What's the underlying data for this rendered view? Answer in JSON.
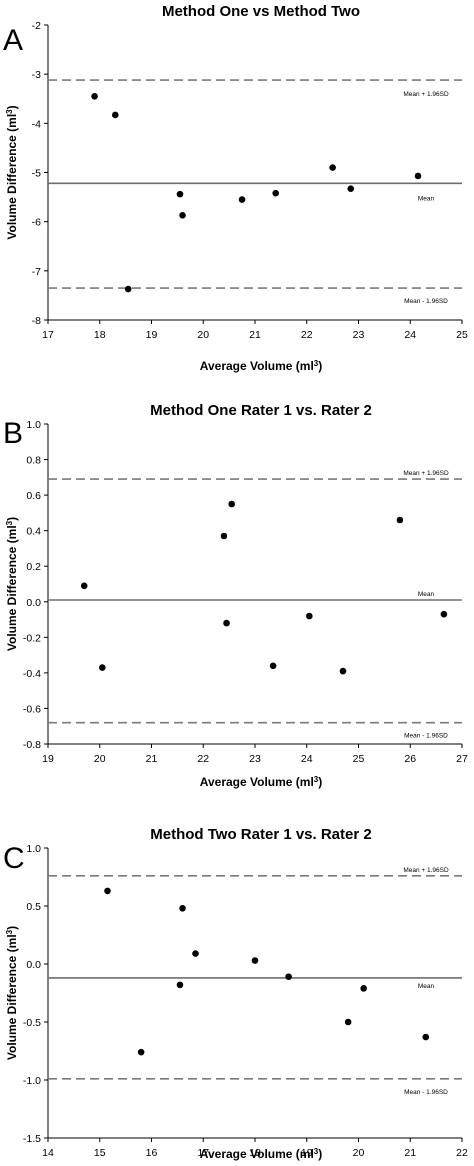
{
  "chart_data": [
    {
      "type": "scatter",
      "panel_letter": "A",
      "title": "Method One vs Method Two",
      "xlabel": "Average Volume (ml",
      "xlabel_sup": "3",
      "xlabel_suffix": ")",
      "ylabel": "Volume Difference (ml",
      "ylabel_sup": "3",
      "ylabel_suffix": ")",
      "xlim": [
        17,
        25
      ],
      "ylim": [
        -8,
        -2
      ],
      "xticks": [
        17,
        18,
        19,
        20,
        21,
        22,
        23,
        24,
        25
      ],
      "yticks": [
        -8,
        -7,
        -6,
        -5,
        -4,
        -3,
        -2
      ],
      "ytick_decimals": 0,
      "points": [
        {
          "x": 17.9,
          "y": -3.45
        },
        {
          "x": 18.3,
          "y": -3.83
        },
        {
          "x": 18.55,
          "y": -7.37
        },
        {
          "x": 19.55,
          "y": -5.44
        },
        {
          "x": 19.6,
          "y": -5.87
        },
        {
          "x": 20.75,
          "y": -5.55
        },
        {
          "x": 21.4,
          "y": -5.42
        },
        {
          "x": 22.5,
          "y": -4.9
        },
        {
          "x": 22.85,
          "y": -5.33
        },
        {
          "x": 24.15,
          "y": -5.07
        }
      ],
      "mean": -5.22,
      "upper": -3.12,
      "lower": -7.35,
      "mean_label": "Mean",
      "upper_label": "Mean + 1.96SD",
      "lower_label": "Mean - 1.96SD",
      "grid": false
    },
    {
      "type": "scatter",
      "panel_letter": "B",
      "title": "Method One Rater 1 vs. Rater 2",
      "xlabel": "Average Volume (ml",
      "xlabel_sup": "3",
      "xlabel_suffix": ")",
      "ylabel": "Volume Difference (ml",
      "ylabel_sup": "3",
      "ylabel_suffix": ")",
      "xlim": [
        19,
        27
      ],
      "ylim": [
        -0.8,
        1.0
      ],
      "xticks": [
        19,
        20,
        21,
        22,
        23,
        24,
        25,
        26,
        27
      ],
      "yticks": [
        -0.8,
        -0.6,
        -0.4,
        -0.2,
        0.0,
        0.2,
        0.4,
        0.6,
        0.8,
        1.0
      ],
      "ytick_decimals": 1,
      "points": [
        {
          "x": 19.7,
          "y": 0.09
        },
        {
          "x": 20.05,
          "y": -0.37
        },
        {
          "x": 22.4,
          "y": 0.37
        },
        {
          "x": 22.45,
          "y": -0.12
        },
        {
          "x": 22.55,
          "y": 0.55
        },
        {
          "x": 23.35,
          "y": -0.36
        },
        {
          "x": 24.05,
          "y": -0.08
        },
        {
          "x": 24.7,
          "y": -0.39
        },
        {
          "x": 25.8,
          "y": 0.46
        },
        {
          "x": 26.65,
          "y": -0.07
        }
      ],
      "mean": 0.01,
      "upper": 0.69,
      "lower": -0.68,
      "mean_label": "Mean",
      "upper_label": "Mean + 1.96SD",
      "lower_label": "Mean - 1.96SD",
      "grid": false
    },
    {
      "type": "scatter",
      "panel_letter": "C",
      "title": "Method Two Rater 1 vs. Rater 2",
      "xlabel": "Average Volume (ml",
      "xlabel_sup": "3",
      "xlabel_suffix": ")",
      "ylabel": "Volume Difference (ml",
      "ylabel_sup": "3",
      "ylabel_suffix": ")",
      "xlim": [
        14,
        22
      ],
      "ylim": [
        -1.5,
        1.0
      ],
      "xticks": [
        14,
        15,
        16,
        17,
        18,
        19,
        20,
        21,
        22
      ],
      "yticks": [
        -1.5,
        -1.0,
        -0.5,
        0.0,
        0.5,
        1.0
      ],
      "ytick_decimals": 1,
      "points": [
        {
          "x": 15.15,
          "y": 0.63
        },
        {
          "x": 15.8,
          "y": -0.76
        },
        {
          "x": 16.55,
          "y": -0.18
        },
        {
          "x": 16.6,
          "y": 0.48
        },
        {
          "x": 16.85,
          "y": 0.09
        },
        {
          "x": 18.0,
          "y": 0.03
        },
        {
          "x": 18.65,
          "y": -0.11
        },
        {
          "x": 19.8,
          "y": -0.5
        },
        {
          "x": 20.1,
          "y": -0.21
        },
        {
          "x": 21.3,
          "y": -0.63
        }
      ],
      "mean": -0.12,
      "upper": 0.76,
      "lower": -0.99,
      "mean_label": "Mean",
      "upper_label": "Mean + 1.96SD",
      "lower_label": "Mean - 1.96SD",
      "grid": false
    }
  ],
  "colors": {
    "point": "#000000",
    "mean_line": "#6e6e6e",
    "sd_line": "#7a7a7a",
    "axis": "#000000"
  }
}
